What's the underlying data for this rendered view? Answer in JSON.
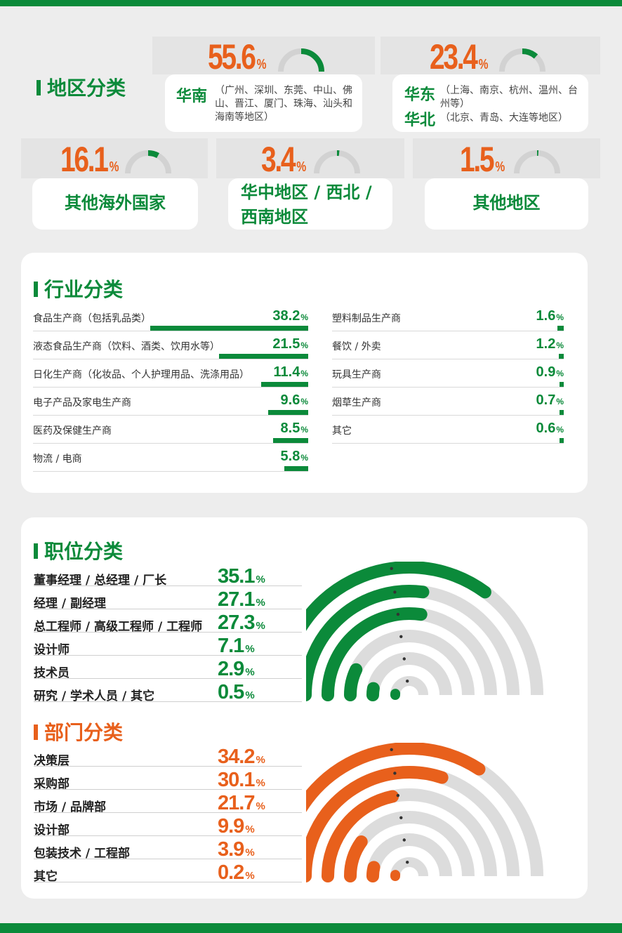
{
  "colors": {
    "green": "#0b8a3a",
    "orange": "#e8601c",
    "track": "#dcdcdc"
  },
  "region": {
    "heading": "地区分类",
    "items": [
      {
        "pct": "55.6",
        "sign": "%",
        "value": 55.6,
        "name": "华南",
        "desc": "（广州、深圳、东莞、中山、佛山、晋江、厦门、珠海、汕头和海南等地区）"
      },
      {
        "pct": "23.4",
        "sign": "%",
        "value": 23.4,
        "name": "华东",
        "desc": "（上海、南京、杭州、温州、台州等）",
        "name2": "华北",
        "desc2": "（北京、青岛、大连等地区）"
      },
      {
        "pct": "16.1",
        "sign": "%",
        "value": 16.1,
        "name": "其他海外国家"
      },
      {
        "pct": "3.4",
        "sign": "%",
        "value": 3.4,
        "name": "华中地区 / 西北 / 西南地区"
      },
      {
        "pct": "1.5",
        "sign": "%",
        "value": 1.5,
        "name": "其他地区"
      }
    ]
  },
  "industry": {
    "heading": "行业分类",
    "left": [
      {
        "label": "食品生产商（包括乳品类）",
        "pct": "38.2",
        "value": 38.2
      },
      {
        "label": "液态食品生产商（饮料、酒类、饮用水等）",
        "pct": "21.5",
        "value": 21.5
      },
      {
        "label": "日化生产商（化妆品、个人护理用品、洗涤用品）",
        "pct": "11.4",
        "value": 11.4
      },
      {
        "label": "电子产品及家电生产商",
        "pct": "9.6",
        "value": 9.6
      },
      {
        "label": "医药及保健生产商",
        "pct": "8.5",
        "value": 8.5
      },
      {
        "label": "物流 / 电商",
        "pct": "5.8",
        "value": 5.8
      }
    ],
    "right": [
      {
        "label": "塑料制品生产商",
        "pct": "1.6",
        "value": 1.6
      },
      {
        "label": "餐饮 / 外卖",
        "pct": "1.2",
        "value": 1.2
      },
      {
        "label": "玩具生产商",
        "pct": "0.9",
        "value": 0.9
      },
      {
        "label": "烟草生产商",
        "pct": "0.7",
        "value": 0.7
      },
      {
        "label": "其它",
        "pct": "0.6",
        "value": 0.6
      }
    ]
  },
  "positions": {
    "heading": "职位分类",
    "items": [
      {
        "label": "董事经理 / 总经理 / 厂长",
        "pct": "35.1",
        "value": 35.1
      },
      {
        "label": "经理 / 副经理",
        "pct": "27.1",
        "value": 27.1
      },
      {
        "label": "总工程师 / 高级工程师 / 工程师",
        "pct": "27.3",
        "value": 27.3
      },
      {
        "label": "设计师",
        "pct": "7.1",
        "value": 7.1
      },
      {
        "label": "技术员",
        "pct": "2.9",
        "value": 2.9
      },
      {
        "label": "研究 / 学术人员 / 其它",
        "pct": "0.5",
        "value": 0.5
      }
    ]
  },
  "departments": {
    "heading": "部门分类",
    "items": [
      {
        "label": "决策层",
        "pct": "34.2",
        "value": 34.2
      },
      {
        "label": "采购部",
        "pct": "30.1",
        "value": 30.1
      },
      {
        "label": "市场 / 品牌部",
        "pct": "21.7",
        "value": 21.7
      },
      {
        "label": "设计部",
        "pct": "9.9",
        "value": 9.9
      },
      {
        "label": "包装技术 / 工程部",
        "pct": "3.9",
        "value": 3.9
      },
      {
        "label": "其它",
        "pct": "0.2",
        "value": 0.2
      }
    ]
  },
  "percent_sign": "%",
  "chart_data": [
    {
      "type": "radial-gauge",
      "categories": [
        "华南",
        "华东 / 华北",
        "其他海外国家",
        "华中地区 / 西北 / 西南地区",
        "其他地区"
      ],
      "values": [
        55.6,
        23.4,
        16.1,
        3.4,
        1.5
      ]
    },
    {
      "type": "bar",
      "categories": [
        "食品生产商（包括乳品类）",
        "液态食品生产商（饮料、酒类、饮用水等）",
        "日化生产商（化妆品、个人护理用品、洗涤用品）",
        "电子产品及家电生产商",
        "医药及保健生产商",
        "物流 / 电商",
        "塑料制品生产商",
        "餐饮 / 外卖",
        "玩具生产商",
        "烟草生产商",
        "其它"
      ],
      "values": [
        38.2,
        21.5,
        11.4,
        9.6,
        8.5,
        5.8,
        1.6,
        1.2,
        0.9,
        0.7,
        0.6
      ]
    },
    {
      "type": "radial-bar",
      "categories": [
        "董事经理 / 总经理 / 厂长",
        "经理 / 副经理",
        "总工程师 / 高级工程师 / 工程师",
        "设计师",
        "技术员",
        "研究 / 学术人员 / 其它"
      ],
      "values": [
        35.1,
        27.1,
        27.3,
        7.1,
        2.9,
        0.5
      ]
    },
    {
      "type": "radial-bar",
      "categories": [
        "决策层",
        "采购部",
        "市场 / 品牌部",
        "设计部",
        "包装技术 / 工程部",
        "其它"
      ],
      "values": [
        34.2,
        30.1,
        21.7,
        9.9,
        3.9,
        0.2
      ]
    }
  ]
}
